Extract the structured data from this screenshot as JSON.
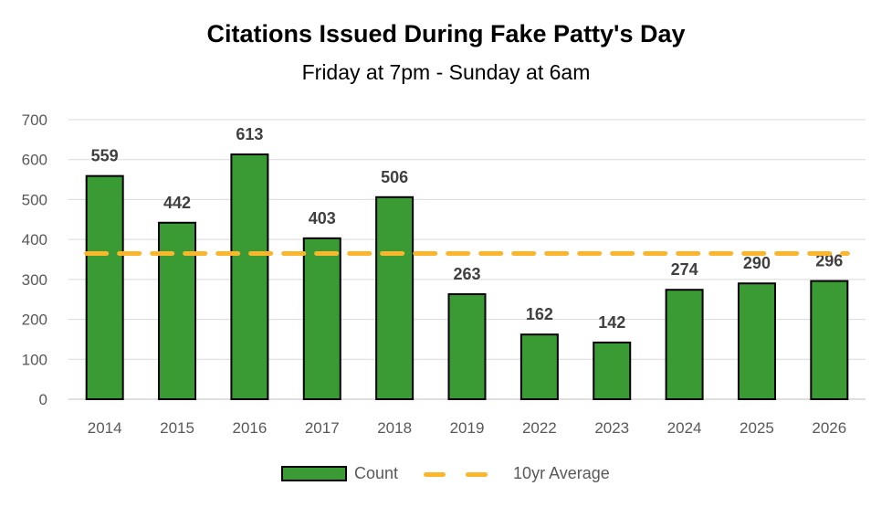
{
  "chart_data": {
    "type": "bar",
    "title": "Citations Issued During Fake Patty's Day",
    "subtitle": "Friday at 7pm - Sunday at 6am",
    "categories": [
      "2014",
      "2015",
      "2016",
      "2017",
      "2018",
      "2019",
      "2022",
      "2023",
      "2024",
      "2025",
      "2026"
    ],
    "series": [
      {
        "name": "Count",
        "type": "bar",
        "color": "#3a9b35",
        "values": [
          559,
          442,
          613,
          403,
          506,
          263,
          162,
          142,
          274,
          290,
          296
        ]
      },
      {
        "name": "10yr Average",
        "type": "line",
        "style": "dashed",
        "color": "#fbb62c",
        "value": 365
      }
    ],
    "ylim": [
      0,
      700
    ],
    "yticks": [
      0,
      100,
      200,
      300,
      400,
      500,
      600,
      700
    ],
    "grid": true,
    "legend": "bottom",
    "xlabel": "",
    "ylabel": ""
  }
}
